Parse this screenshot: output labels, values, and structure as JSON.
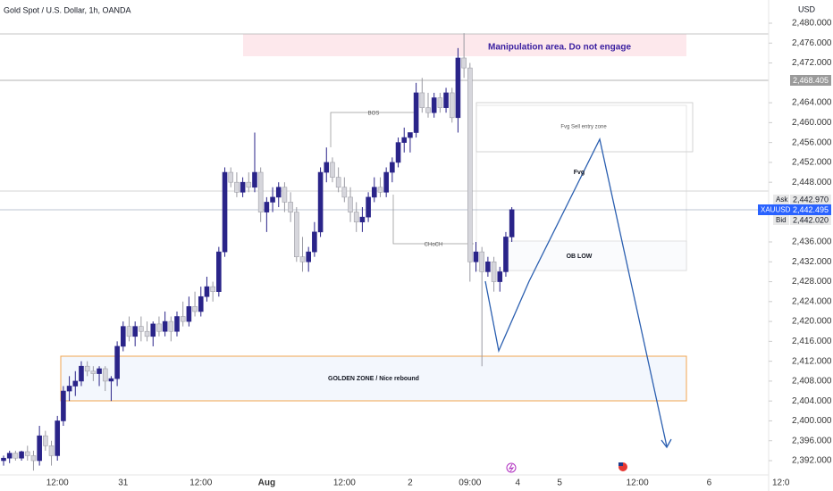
{
  "chart_data": {
    "type": "candlestick",
    "title": "Gold Spot / U.S. Dollar, 1h, OANDA",
    "currency": "USD",
    "up_color": "#2a2489",
    "down_color": "#d6d6dc",
    "categories": [
      null,
      null,
      null,
      null,
      null,
      null,
      null,
      null,
      null,
      "12:00",
      null,
      null,
      null,
      null,
      null,
      null,
      null,
      null,
      null,
      null,
      "31",
      null,
      null,
      null,
      null,
      null,
      null,
      null,
      null,
      null,
      null,
      null,
      null,
      "12:00",
      null,
      null,
      null,
      null,
      null,
      null,
      null,
      null,
      null,
      null,
      "Aug",
      null,
      null,
      null,
      null,
      null,
      null,
      null,
      null,
      null,
      null,
      null,
      null,
      "12:00",
      null,
      null,
      null,
      null,
      null,
      null,
      null,
      null,
      null,
      null,
      "2",
      null,
      null,
      null,
      null,
      null,
      null,
      null,
      null,
      null,
      "09:00",
      null,
      null,
      null,
      null,
      null,
      null,
      null,
      "4",
      null,
      null,
      null,
      null,
      null,
      null,
      "5",
      null,
      null,
      null,
      null,
      null,
      null,
      null,
      null,
      null,
      null,
      null,
      null,
      "12:00",
      null,
      null,
      null,
      null,
      null,
      null,
      null,
      null,
      null,
      null,
      null,
      "6",
      null,
      null,
      null,
      null,
      null,
      null,
      null,
      null,
      null,
      null,
      null,
      "12:0"
    ],
    "open": [
      2392,
      2392.5,
      2393.5,
      2392.5,
      2393.8,
      2393,
      2392,
      2397,
      2395,
      2393,
      2400,
      2406,
      2407,
      2408,
      2411,
      2410,
      2409.5,
      2410.5,
      2408,
      2408.5,
      2415,
      2419,
      2417,
      2419,
      2418,
      2417,
      2419.5,
      2418,
      2420,
      2418,
      2421,
      2420,
      2423,
      2422,
      2425,
      2427,
      2426,
      2434,
      2450,
      2448,
      2446,
      2448,
      2447,
      2450,
      2442,
      2444,
      2445,
      2447,
      2444,
      2442,
      2433,
      2432,
      2434,
      2438,
      2450,
      2452,
      2449,
      2447,
      2445,
      2442,
      2440,
      2441,
      2445,
      2447,
      2446,
      2450,
      2452,
      2456,
      2457,
      2458,
      2466,
      2463,
      2462,
      2465,
      2463,
      2466,
      2461,
      2473,
      2471,
      2432,
      2434,
      2430,
      2432,
      2428,
      2430,
      2437,
      null,
      null,
      null,
      null,
      null,
      null,
      null,
      null,
      null,
      null,
      null,
      null,
      null,
      null,
      null,
      null,
      null,
      null,
      null,
      null,
      null,
      null,
      null,
      null,
      null,
      null,
      null,
      null,
      null,
      null,
      null,
      null,
      null,
      null,
      null,
      null,
      null,
      null,
      null,
      null,
      null,
      null,
      null,
      null,
      null
    ],
    "high": [
      2393,
      2394,
      2394,
      2394,
      2395,
      2394,
      2399,
      2398,
      2396,
      2401,
      2407,
      2409,
      2410,
      2412,
      2412,
      2411,
      2411,
      2411,
      2409,
      2416,
      2420,
      2421,
      2420,
      2421,
      2420,
      2420,
      2421,
      2422,
      2421,
      2422,
      2424,
      2425,
      2426,
      2427,
      2429,
      2428,
      2435,
      2451,
      2451,
      2450,
      2449,
      2450,
      2458,
      2451,
      2445,
      2447,
      2448,
      2448,
      2446,
      2443,
      2437,
      2435,
      2440,
      2451,
      2455,
      2453,
      2451,
      2449,
      2447,
      2444,
      2443,
      2446,
      2449,
      2449,
      2451,
      2453,
      2457,
      2459,
      2458,
      2468,
      2469,
      2466,
      2466,
      2466,
      2467,
      2467,
      2475,
      2478,
      2472,
      2436,
      2435,
      2433,
      2433,
      2431,
      2438,
      2443,
      null,
      null,
      null,
      null,
      null,
      null,
      null,
      null,
      null,
      null,
      null,
      null,
      null,
      null,
      null,
      null,
      null,
      null,
      null,
      null,
      null,
      null,
      null,
      null,
      null,
      null,
      null,
      null,
      null,
      null,
      null,
      null,
      null,
      null,
      null,
      null,
      null,
      null,
      null,
      null,
      null,
      null,
      null,
      null,
      null
    ],
    "low": [
      2391,
      2391.5,
      2392,
      2392,
      2392,
      2390,
      2391,
      2394,
      2391,
      2392,
      2399,
      2404,
      2405,
      2407,
      2409,
      2408,
      2407,
      2406,
      2404,
      2407,
      2414,
      2416,
      2415,
      2416,
      2416,
      2415,
      2417,
      2417,
      2416,
      2417,
      2419,
      2419,
      2421,
      2421,
      2424,
      2424,
      2425,
      2433,
      2447,
      2445,
      2445,
      2446,
      2446,
      2440,
      2438,
      2442,
      2443,
      2442,
      2440,
      2432,
      2430,
      2430,
      2433,
      2437,
      2448,
      2448,
      2446,
      2444,
      2440,
      2438,
      2438,
      2440,
      2444,
      2445,
      2445,
      2448,
      2451,
      2454,
      2454,
      2457,
      2462,
      2461,
      2461,
      2462,
      2462,
      2460,
      2458,
      2469,
      2428,
      2430,
      2411,
      2429,
      2426,
      2426,
      2429,
      2436,
      null,
      null,
      null,
      null,
      null,
      null,
      null,
      null,
      null,
      null,
      null,
      null,
      null,
      null,
      null,
      null,
      null,
      null,
      null,
      null,
      null,
      null,
      null,
      null,
      null,
      null,
      null,
      null,
      null,
      null,
      null,
      null,
      null,
      null,
      null,
      null,
      null,
      null,
      null,
      null,
      null,
      null,
      null,
      null,
      null
    ],
    "close": [
      2392.5,
      2393.5,
      2392.5,
      2393.8,
      2393,
      2392,
      2397,
      2395,
      2393,
      2400,
      2406,
      2407,
      2408,
      2411,
      2410,
      2409.5,
      2410.5,
      2408,
      2408.5,
      2415,
      2419,
      2417,
      2419,
      2418,
      2417,
      2419.5,
      2418,
      2420,
      2418,
      2421,
      2420,
      2423,
      2422,
      2425,
      2427,
      2426,
      2434,
      2450,
      2448,
      2446,
      2448,
      2447,
      2450,
      2442,
      2444,
      2445,
      2447,
      2444,
      2442,
      2433,
      2432,
      2434,
      2438,
      2450,
      2452,
      2449,
      2447,
      2445,
      2442,
      2440,
      2441,
      2445,
      2447,
      2446,
      2450,
      2452,
      2456,
      2457,
      2458,
      2466,
      2463,
      2462,
      2465,
      2463,
      2466,
      2461,
      2473,
      2471,
      2432,
      2434,
      2430,
      2432,
      2428,
      2430,
      2437,
      2442.5,
      null,
      null,
      null,
      null,
      null,
      null,
      null,
      null,
      null,
      null,
      null,
      null,
      null,
      null,
      null,
      null,
      null,
      null,
      null,
      null,
      null,
      null,
      null,
      null,
      null,
      null,
      null,
      null,
      null,
      null,
      null,
      null,
      null,
      null,
      null,
      null,
      null,
      null,
      null,
      null,
      null,
      null,
      null,
      null,
      null
    ],
    "ylim": [
      2392,
      2480
    ],
    "yticks": [
      {
        "value": 2480,
        "label": "2,480.000"
      },
      {
        "value": 2476,
        "label": "2,476.000"
      },
      {
        "value": 2472,
        "label": "2,472.000"
      },
      {
        "value": 2464,
        "label": "2,464.000"
      },
      {
        "value": 2460,
        "label": "2,460.000"
      },
      {
        "value": 2456,
        "label": "2,456.000"
      },
      {
        "value": 2452,
        "label": "2,452.000"
      },
      {
        "value": 2448,
        "label": "2,448.000"
      },
      {
        "value": 2436,
        "label": "2,436.000"
      },
      {
        "value": 2432,
        "label": "2,432.000"
      },
      {
        "value": 2428,
        "label": "2,428.000"
      },
      {
        "value": 2424,
        "label": "2,424.000"
      },
      {
        "value": 2420,
        "label": "2,420.000"
      },
      {
        "value": 2416,
        "label": "2,416.000"
      },
      {
        "value": 2412,
        "label": "2,412.000"
      },
      {
        "value": 2408,
        "label": "2,408.000"
      },
      {
        "value": 2404,
        "label": "2,404.000"
      },
      {
        "value": 2400,
        "label": "2,400.000"
      },
      {
        "value": 2396,
        "label": "2,396.000"
      },
      {
        "value": 2392,
        "label": "2,392.000"
      }
    ],
    "price_tags": {
      "level": "2,468.405",
      "ask_label": "Ask",
      "ask": "2,442.970",
      "symbol": "XAUUSD",
      "last": "2,442.495",
      "bid_label": "Bid",
      "bid": "2,442.020"
    },
    "annotations": {
      "manipulation": "Manipulation area. Do not engage",
      "bos": "BOS",
      "choch": "CHoCH",
      "fvg_zone": "Fvg Sell entry zone",
      "fvg": "Fvg",
      "ob_low": "OB LOW",
      "golden_zone": "GOLDEN ZONE / Nice rebound"
    }
  }
}
